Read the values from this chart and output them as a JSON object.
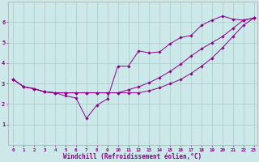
{
  "background_color": "#cce8e8",
  "grid_color": "#aacccc",
  "line_color": "#8b008b",
  "marker_color": "#8b008b",
  "xlabel": "Windchill (Refroidissement éolien,°C)",
  "xlim": [
    -0.5,
    23.3
  ],
  "ylim": [
    0,
    7
  ],
  "xticks": [
    0,
    1,
    2,
    3,
    4,
    5,
    6,
    7,
    8,
    9,
    10,
    11,
    12,
    13,
    14,
    15,
    16,
    17,
    18,
    19,
    20,
    21,
    22,
    23
  ],
  "yticks": [
    1,
    2,
    3,
    4,
    5,
    6
  ],
  "line1_x": [
    0,
    1,
    2,
    3,
    4,
    5,
    6,
    7,
    8,
    9,
    10,
    11,
    12,
    13,
    14,
    15,
    16,
    17,
    18,
    19,
    20,
    21,
    22,
    23
  ],
  "line1_y": [
    3.2,
    2.85,
    2.75,
    2.6,
    2.55,
    2.55,
    2.55,
    2.55,
    2.55,
    2.55,
    2.55,
    2.7,
    2.85,
    3.05,
    3.3,
    3.6,
    3.95,
    4.35,
    4.7,
    5.0,
    5.3,
    5.7,
    6.1,
    6.2
  ],
  "line2_x": [
    0,
    1,
    2,
    3,
    4,
    5,
    6,
    7,
    8,
    9,
    10,
    11,
    12,
    13,
    14,
    15,
    16,
    17,
    18,
    19,
    20,
    21,
    22,
    23
  ],
  "line2_y": [
    3.2,
    2.85,
    2.75,
    2.6,
    2.55,
    2.4,
    2.3,
    1.3,
    1.95,
    2.25,
    3.85,
    3.85,
    4.6,
    4.5,
    4.55,
    4.95,
    5.25,
    5.35,
    5.85,
    6.1,
    6.3,
    6.15,
    6.1,
    6.2
  ],
  "line3_x": [
    0,
    1,
    2,
    3,
    4,
    5,
    6,
    7,
    8,
    9,
    10,
    11,
    12,
    13,
    14,
    15,
    16,
    17,
    18,
    19,
    20,
    21,
    22,
    23
  ],
  "line3_y": [
    3.2,
    2.85,
    2.75,
    2.6,
    2.55,
    2.55,
    2.55,
    2.55,
    2.55,
    2.55,
    2.55,
    2.55,
    2.55,
    2.65,
    2.8,
    3.0,
    3.2,
    3.5,
    3.85,
    4.25,
    4.75,
    5.3,
    5.85,
    6.2
  ],
  "tick_label_color": "#880088",
  "tick_fontsize": 4.2,
  "ytick_fontsize": 5.0,
  "xlabel_fontsize": 5.5,
  "xlabel_color": "#880088",
  "line_width": 0.7,
  "marker_size": 1.8
}
